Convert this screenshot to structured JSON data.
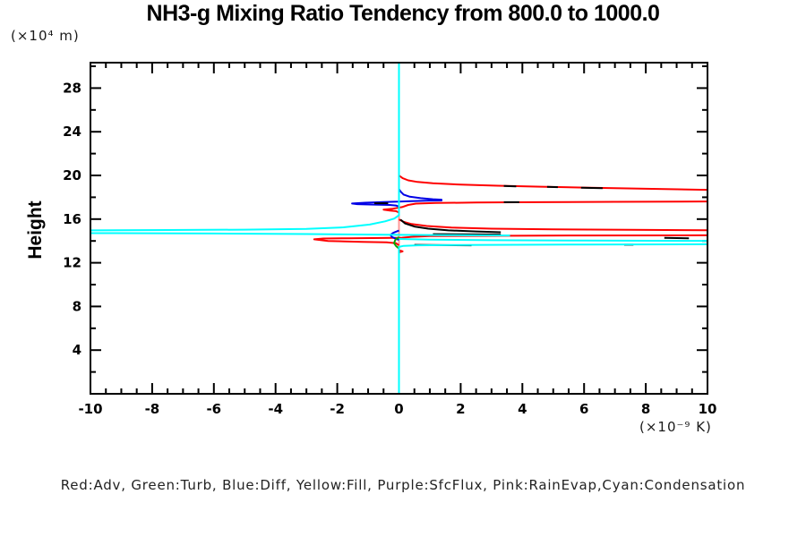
{
  "title": "NH3-g Mixing Ratio Tendency from 800.0 to 1000.0",
  "y_axis_unit": "(×10⁴ m)",
  "x_axis_unit": "(×10⁻⁹ K)",
  "y_axis_label": "Height",
  "legend_text": "Red:Adv, Green:Turb, Blue:Diff, Yellow:Fill, Purple:SfcFlux, Pink:RainEvap,Cyan:Condensation",
  "chart_data": {
    "type": "line",
    "title": "NH3-g Mixing Ratio Tendency from 800.0 to 1000.0",
    "xlabel": "(×10⁻⁹ K)",
    "ylabel": "Height (×10⁴ m)",
    "xlim": [
      -10,
      10
    ],
    "ylim": [
      0,
      30.33
    ],
    "grid": false,
    "x_major_ticks": [
      -10,
      -8,
      -6,
      -4,
      -2,
      0,
      2,
      4,
      6,
      8,
      10
    ],
    "x_tick_labels": [
      "-10",
      "-8",
      "-6",
      "-4",
      "-2",
      "0",
      "2",
      "4",
      "6",
      "8",
      "10"
    ],
    "x_minor_step": 0.5,
    "y_major_ticks": [
      4,
      8,
      12,
      16,
      20,
      24,
      28
    ],
    "y_tick_labels": [
      "4",
      "8",
      "12",
      "16",
      "20",
      "24",
      "28"
    ],
    "y_minor_step": 2,
    "axis_color": "#000000",
    "background": "#ffffff",
    "legend_position": "bottom",
    "note": "Series values in x are tendencies (1e-9 K); heights h in 1e4 m. Yellow(Fill), Purple(SfcFlux) are zero everywhere (hidden vertical at x=0); Pink(RainEvap) zero line visible at x=0 where Cyan departs.",
    "series": [
      {
        "name": "Fill",
        "color": "#ffff00",
        "width": 2,
        "segments": [
          [
            [
              0,
              30.33
            ],
            [
              0,
              0
            ]
          ]
        ]
      },
      {
        "name": "SfcFlux",
        "color": "#aa00ff",
        "width": 2,
        "segments": [
          [
            [
              0,
              30.33
            ],
            [
              0,
              0
            ]
          ]
        ]
      },
      {
        "name": "RainEvap",
        "color": "#ff9898",
        "width": 2,
        "segments": [
          [
            [
              0,
              30.33
            ],
            [
              0,
              0
            ]
          ]
        ]
      },
      {
        "name": "Adv",
        "color": "#ff0000",
        "width": 2,
        "segments": [
          [
            [
              0,
              20.0
            ],
            [
              0.12,
              19.75
            ],
            [
              0.3,
              19.55
            ],
            [
              0.6,
              19.4
            ],
            [
              1.1,
              19.28
            ],
            [
              2,
              19.16
            ],
            [
              3.2,
              19.06
            ],
            [
              4.6,
              18.97
            ],
            [
              6.2,
              18.88
            ],
            [
              8,
              18.78
            ],
            [
              10.5,
              18.65
            ]
          ],
          [
            [
              10.5,
              17.62
            ],
            [
              7,
              17.58
            ],
            [
              4.5,
              17.55
            ],
            [
              2.5,
              17.52
            ],
            [
              1.2,
              17.48
            ],
            [
              0.55,
              17.42
            ],
            [
              0.3,
              17.3
            ],
            [
              0.1,
              17.1
            ],
            [
              -0.2,
              16.95
            ],
            [
              -0.5,
              16.87
            ],
            [
              -0.3,
              16.78
            ],
            [
              -0.1,
              16.73
            ],
            [
              0,
              16.6
            ]
          ],
          [
            [
              0,
              15.98
            ],
            [
              0.15,
              15.75
            ],
            [
              0.4,
              15.55
            ],
            [
              0.9,
              15.37
            ],
            [
              1.7,
              15.22
            ],
            [
              3,
              15.12
            ],
            [
              5,
              15.06
            ],
            [
              7.5,
              15.02
            ],
            [
              10.5,
              14.98
            ]
          ],
          [
            [
              10.5,
              14.52
            ],
            [
              6,
              14.5
            ],
            [
              3,
              14.47
            ],
            [
              1,
              14.44
            ],
            [
              0.4,
              14.38
            ],
            [
              0.1,
              14.3
            ],
            [
              -0.5,
              14.27
            ],
            [
              -1.6,
              14.25
            ],
            [
              -2.45,
              14.22
            ],
            [
              -2.75,
              14.15
            ],
            [
              -2.3,
              14.0
            ],
            [
              -1.2,
              13.92
            ],
            [
              -0.4,
              13.87
            ],
            [
              -0.1,
              13.8
            ],
            [
              0,
              13.6
            ]
          ],
          [
            [
              0,
              13.15
            ],
            [
              0.12,
              13.05
            ],
            [
              0,
              12.95
            ]
          ]
        ]
      },
      {
        "name": "Diff",
        "color": "#0000e6",
        "width": 2,
        "segments": [
          [
            [
              0,
              18.75
            ],
            [
              0.06,
              18.5
            ],
            [
              0.15,
              18.25
            ],
            [
              0.35,
              18.05
            ],
            [
              0.7,
              17.92
            ],
            [
              1.1,
              17.82
            ],
            [
              1.38,
              17.78
            ],
            [
              1.38,
              17.71
            ],
            [
              0.9,
              17.68
            ],
            [
              0.4,
              17.65
            ],
            [
              0.1,
              17.62
            ],
            [
              0,
              17.6
            ],
            [
              -0.5,
              17.56
            ],
            [
              -1.1,
              17.5
            ],
            [
              -1.52,
              17.43
            ],
            [
              -1.35,
              17.37
            ],
            [
              -0.8,
              17.33
            ],
            [
              -0.3,
              17.3
            ],
            [
              -0.1,
              17.25
            ],
            [
              0,
              17.15
            ]
          ],
          [
            [
              0,
              14.95
            ],
            [
              -0.18,
              14.75
            ],
            [
              -0.28,
              14.55
            ],
            [
              -0.22,
              14.35
            ],
            [
              -0.1,
              14.2
            ],
            [
              0,
              14.1
            ]
          ]
        ]
      },
      {
        "name": "Turb",
        "color": "#00a800",
        "width": 2,
        "segments": [
          [
            [
              0,
              14.35
            ],
            [
              -0.12,
              14.1
            ],
            [
              -0.16,
              13.8
            ],
            [
              -0.1,
              13.55
            ],
            [
              0,
              13.3
            ]
          ]
        ]
      },
      {
        "name": "unlabeled-black",
        "color": "#000000",
        "width": 2,
        "segments": [
          [
            [
              3.4,
              19.04
            ],
            [
              3.8,
              19.0
            ]
          ],
          [
            [
              4.8,
              18.95
            ],
            [
              5.15,
              18.93
            ]
          ],
          [
            [
              5.9,
              18.88
            ],
            [
              6.6,
              18.84
            ]
          ],
          [
            [
              -0.8,
              17.45
            ],
            [
              -0.35,
              17.45
            ]
          ],
          [
            [
              3.4,
              17.55
            ],
            [
              3.9,
              17.55
            ]
          ],
          [
            [
              0.05,
              15.95
            ],
            [
              0.2,
              15.6
            ],
            [
              0.5,
              15.32
            ],
            [
              0.95,
              15.12
            ],
            [
              1.6,
              14.97
            ],
            [
              2.5,
              14.87
            ],
            [
              3.3,
              14.8
            ]
          ],
          [
            [
              1.1,
              14.62
            ],
            [
              3.3,
              14.58
            ]
          ],
          [
            [
              8.6,
              14.28
            ],
            [
              9.4,
              14.25
            ]
          ],
          [
            [
              0.5,
              13.64
            ],
            [
              2.35,
              13.6
            ]
          ],
          [
            [
              7.3,
              13.66
            ],
            [
              7.6,
              13.66
            ]
          ]
        ]
      },
      {
        "name": "Condensation",
        "color": "#00ffff",
        "width": 2,
        "segments": [
          [
            [
              0,
              30.33
            ],
            [
              0,
              16.35
            ],
            [
              -0.15,
              16.05
            ],
            [
              -0.45,
              15.8
            ],
            [
              -0.95,
              15.5
            ],
            [
              -1.8,
              15.25
            ],
            [
              -3,
              15.1
            ],
            [
              -5,
              15.03
            ],
            [
              -7.5,
              15.0
            ],
            [
              -10.5,
              14.97
            ]
          ],
          [
            [
              -10.5,
              14.72
            ],
            [
              -6,
              14.68
            ],
            [
              -3,
              14.63
            ],
            [
              -1,
              14.58
            ],
            [
              0,
              14.56
            ],
            [
              1.5,
              14.53
            ],
            [
              2.8,
              14.51
            ],
            [
              3.6,
              14.5
            ]
          ],
          [
            [
              0,
              14.18
            ],
            [
              1,
              14.12
            ],
            [
              3,
              14.07
            ],
            [
              6,
              14.03
            ],
            [
              10.5,
              14.0
            ]
          ],
          [
            [
              10.5,
              13.7
            ],
            [
              6,
              13.67
            ],
            [
              2,
              13.63
            ],
            [
              0.6,
              13.6
            ],
            [
              0.15,
              13.55
            ],
            [
              0,
              13.45
            ],
            [
              0,
              0
            ]
          ]
        ]
      }
    ]
  }
}
